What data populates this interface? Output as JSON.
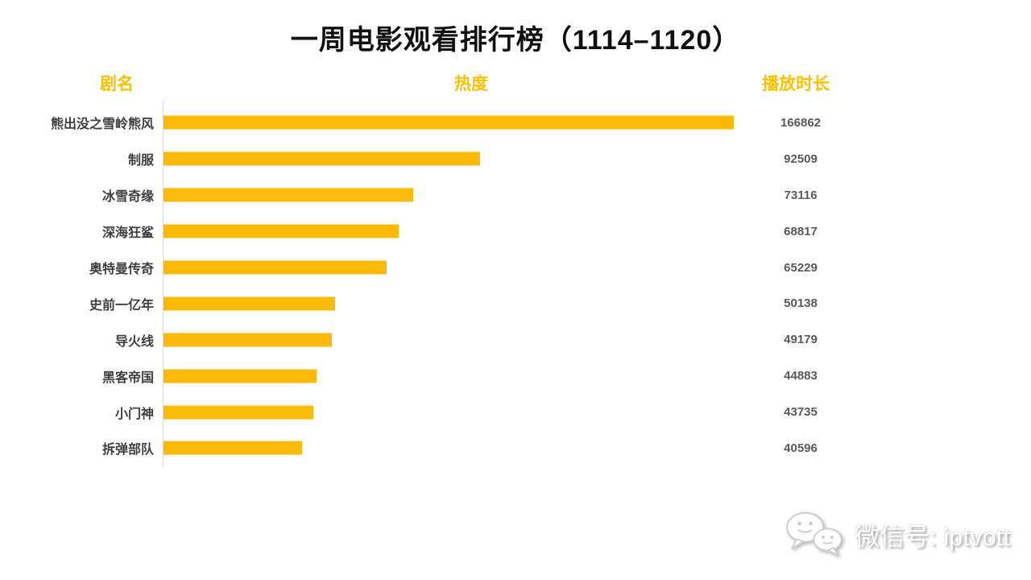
{
  "title": "一周电影观看排行榜（1114–1120）",
  "columns": {
    "name": "剧名",
    "heat": "热度",
    "duration": "播放时长"
  },
  "watermark": {
    "icon": "wechat-icon",
    "label": "微信号: iptvott"
  },
  "colors": {
    "accent": "#FFC000",
    "bar": "#FBB90A",
    "axis": "#D8D8D8",
    "label_text": "#3F3F3F",
    "value_text": "#595959"
  },
  "chart_data": {
    "type": "bar",
    "orientation": "horizontal",
    "title": "一周电影观看排行榜（1114–1120）",
    "xlabel": "热度",
    "ylabel": "剧名",
    "value_column_label": "播放时长",
    "categories": [
      "熊出没之雪岭熊风",
      "制服",
      "冰雪奇缘",
      "深海狂鲨",
      "奥特曼传奇",
      "史前一亿年",
      "导火线",
      "黑客帝国",
      "小门神",
      "拆弹部队"
    ],
    "values": [
      166862,
      92509,
      73116,
      68817,
      65229,
      50138,
      49179,
      44883,
      43735,
      40596
    ],
    "xlim": [
      0,
      166862
    ],
    "grid": false,
    "legend": false,
    "bar_color": "#FBB90A",
    "value_labels_shown": true
  }
}
